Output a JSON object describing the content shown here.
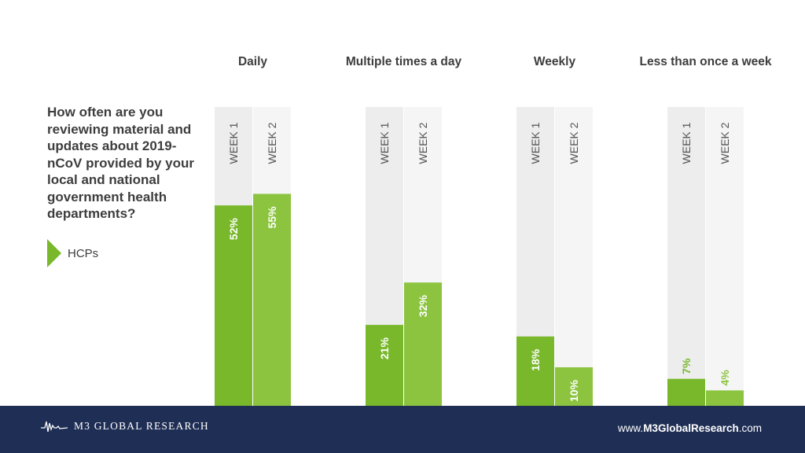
{
  "question": "How often are you reviewing material and updates about 2019-nCoV provided by your local and national government health departments?",
  "legend": {
    "label": "HCPs"
  },
  "colors": {
    "week1": "#78b82a",
    "week2": "#8cc440",
    "track1": "#ededed",
    "track2": "#f5f5f5",
    "footer": "#1f2e55",
    "text": "#3d3d3d"
  },
  "footer": {
    "logo_text": "M3  GLOBAL RESEARCH",
    "site_prefix": "www.",
    "site_bold": "M3GlobalResearch",
    "site_suffix": ".com"
  },
  "chart_data": {
    "type": "bar",
    "categories": [
      "Daily",
      "Multiple times a day",
      "Weekly",
      "Less than once a week"
    ],
    "series": [
      {
        "name": "WEEK 1",
        "values": [
          52,
          21,
          18,
          7
        ]
      },
      {
        "name": "WEEK 2",
        "values": [
          55,
          32,
          10,
          4
        ]
      }
    ],
    "data_labels": [
      [
        "52%",
        "21%",
        "18%",
        "7%"
      ],
      [
        "55%",
        "32%",
        "10%",
        "4%"
      ]
    ],
    "ylim": [
      0,
      100
    ],
    "unit": "%",
    "legend": "HCPs"
  }
}
